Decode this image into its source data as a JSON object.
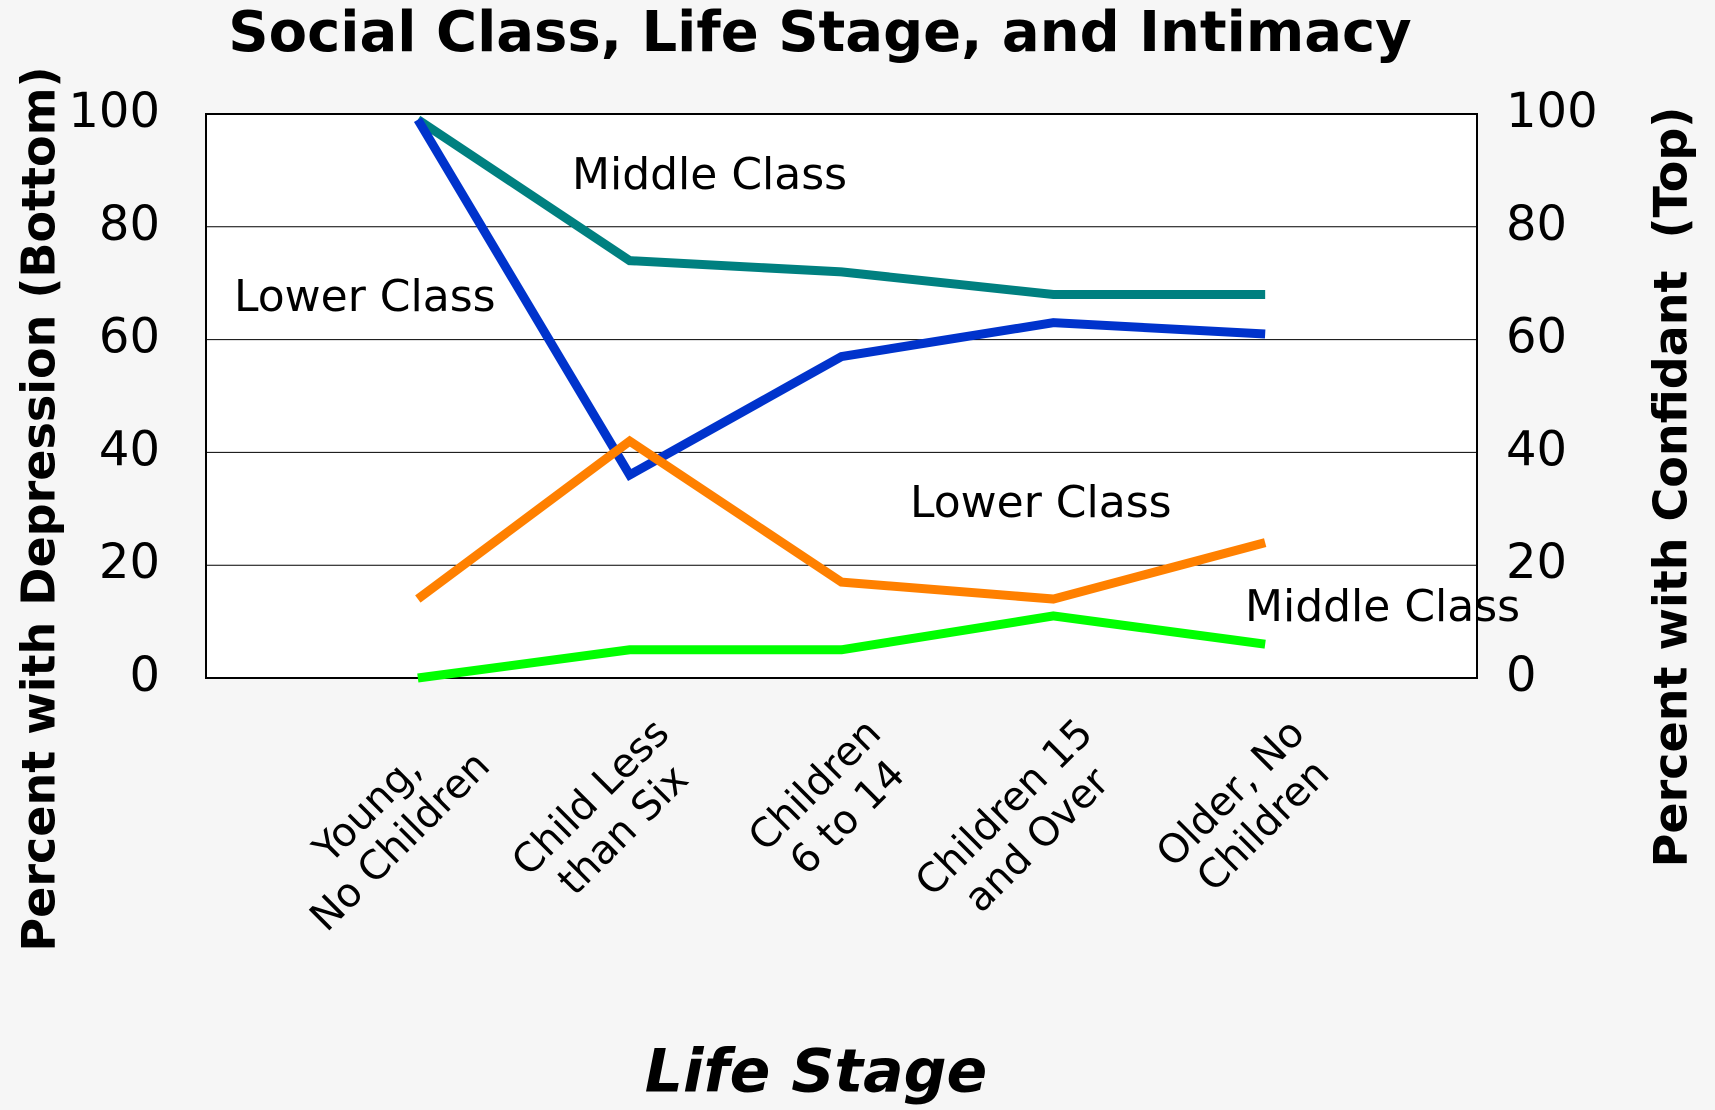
{
  "chart_data": {
    "type": "line",
    "title": "Social Class, Life Stage, and Intimacy",
    "x_label": "Life Stage",
    "y_label": "Percent with Depression (Bottom)",
    "y2_label": "Percent with Confidant  (Top)",
    "categories": [
      [
        "Young,",
        "No Children"
      ],
      [
        "Child Less",
        "than Six"
      ],
      [
        "Children",
        "6 to 14"
      ],
      [
        "Children 15",
        "and Over"
      ],
      [
        "Older, No",
        "Children"
      ]
    ],
    "series": [
      {
        "name": "Middle Class",
        "color": "#008080",
        "axis": "y2",
        "values": [
          99,
          74,
          72,
          68,
          68
        ]
      },
      {
        "name": "Lower Class",
        "color": "#0033cc",
        "axis": "y2",
        "values": [
          99,
          36,
          57,
          63,
          61
        ]
      },
      {
        "name": "Lower Class",
        "color": "#ff8000",
        "values": [
          14,
          42,
          17,
          14,
          24
        ]
      },
      {
        "name": "Middle Class",
        "color": "#00ff00",
        "values": [
          0,
          5,
          5,
          11,
          6
        ]
      }
    ],
    "ylim": [
      0,
      100
    ],
    "yticks": [
      0,
      20,
      40,
      60,
      80,
      100
    ],
    "y2lim": [
      0,
      100
    ],
    "y2ticks": [
      0,
      20,
      40,
      60,
      80,
      100
    ],
    "grid": true
  }
}
